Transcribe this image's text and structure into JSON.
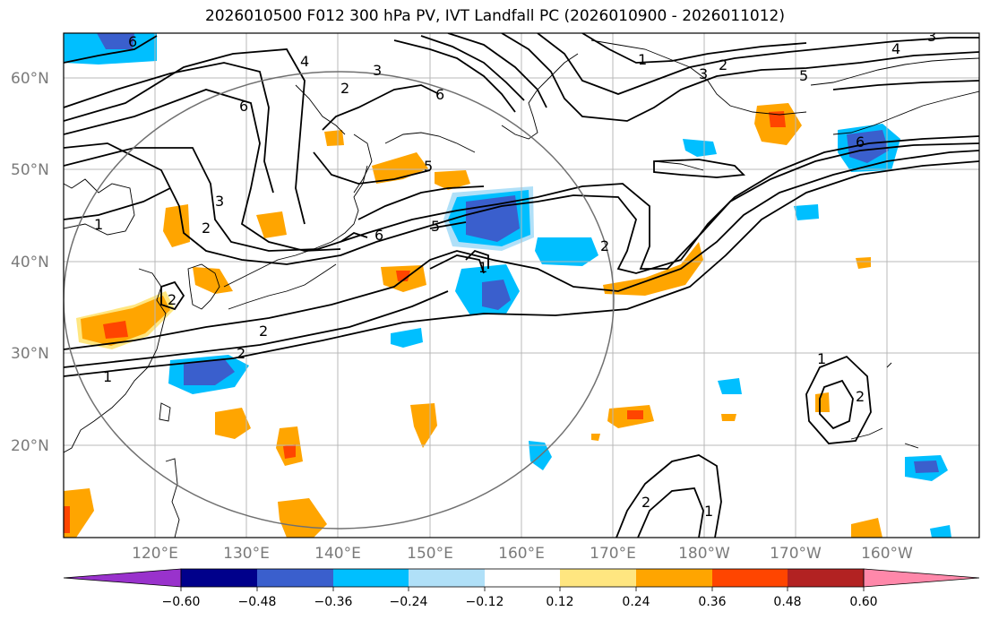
{
  "title": "2026010500 F012 300 hPa PV, IVT Landfall PC (2026010900 - 2026011012)",
  "lat_labels": [
    "60°N",
    "50°N",
    "40°N",
    "30°N",
    "20°N"
  ],
  "lon_labels": [
    "120°E",
    "130°E",
    "140°E",
    "150°E",
    "160°E",
    "170°E",
    "180°W",
    "170°W",
    "160°W"
  ],
  "contour_labels": [
    "6",
    "5",
    "3",
    "2",
    "1",
    "4",
    "3",
    "4",
    "3",
    "5",
    "2",
    "1",
    "3",
    "2",
    "6",
    "6",
    "5",
    "6",
    "2",
    "1",
    "2",
    "1",
    "6",
    "2",
    "2",
    "1",
    "2",
    "1",
    "2"
  ],
  "colorbar": {
    "ticks": [
      "−0.60",
      "−0.48",
      "−0.36",
      "−0.24",
      "−0.12",
      "0.12",
      "0.24",
      "0.36",
      "0.48",
      "0.60"
    ],
    "colors": [
      "#9932cc",
      "#00008b",
      "#3a5fcd",
      "#00bfff",
      "#b0e0f8",
      "#ffffff",
      "#ffe680",
      "#ffa500",
      "#ff4500",
      "#b22222",
      "#ff88aa"
    ]
  },
  "colors": {
    "pos_weak": "#ffe680",
    "pos": "#ffa500",
    "pos_strong": "#ff4500",
    "neg_weak": "#b0e0f8",
    "neg": "#00bfff",
    "neg_strong": "#3a5fcd"
  }
}
